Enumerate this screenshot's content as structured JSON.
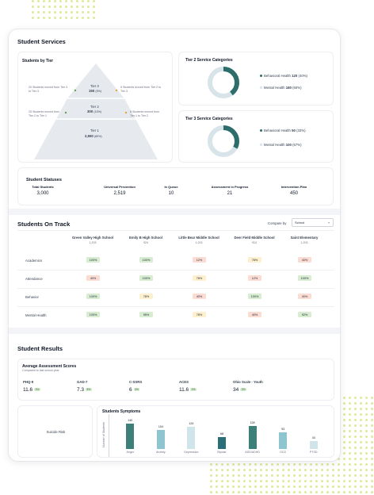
{
  "student_services": {
    "title": "Student Services",
    "tier_card": {
      "title": "Students by Tier",
      "tier3": {
        "label": "Tier 3",
        "count": "150",
        "pct": "(5%)"
      },
      "tier2": {
        "label": "Tier 2",
        "count": "300",
        "pct": "(10%)"
      },
      "tier1": {
        "label": "Tier 1",
        "count": "2,550",
        "pct": "(85%)"
      },
      "note_left_top": [
        "20 Students moved from Tier 3",
        "to Tier 3"
      ],
      "note_right_top": [
        "5 Students moved from Tier 2 to",
        "Tier 3"
      ],
      "note_left_bottom": [
        "25 Students moved from",
        "Tier 2 to Tier 1"
      ],
      "note_right_bottom": [
        "8 Students moved from",
        "Tier 1 to Tier 2"
      ]
    },
    "tier2_card": {
      "title": "Tier 2 Service Categories",
      "items": [
        {
          "label": "Behavioral Health",
          "value": "120",
          "pct": "(40%)",
          "color": "#2e6e6a"
        },
        {
          "label": "Mental Health",
          "value": "180",
          "pct": "(60%)",
          "color": "#d8e4ea"
        }
      ],
      "fraction": 0.4
    },
    "tier3_card": {
      "title": "Tier 3 Service Categories",
      "items": [
        {
          "label": "Behavioral Health",
          "value": "50",
          "pct": "(33%)",
          "color": "#2e6e6a"
        },
        {
          "label": "Mental Health",
          "value": "100",
          "pct": "(67%)",
          "color": "#d8e4ea"
        }
      ],
      "fraction": 0.33
    },
    "statuses": {
      "title": "Student Statuses",
      "items": [
        {
          "label": "Total Students",
          "value": "3,000"
        },
        {
          "label": "Universal Prevention",
          "value": "2,519"
        },
        {
          "label": "In Queue",
          "value": "10"
        },
        {
          "label": "Assessment in Progress",
          "value": "21"
        },
        {
          "label": "Intervention Plan",
          "value": "450"
        }
      ]
    }
  },
  "on_track": {
    "title": "Students On Track",
    "compare_label": "Compare by",
    "compare_value": "School",
    "schools": [
      {
        "name": "Green Valley High School",
        "count": "1,203"
      },
      {
        "name": "Emily B High School",
        "count": "924"
      },
      {
        "name": "Little Bear Middle School",
        "count": "1,203"
      },
      {
        "name": "Deer Field Middle School",
        "count": "924"
      },
      {
        "name": "Saint Elementary",
        "count": "1,203"
      }
    ],
    "rows": [
      {
        "label": "Academics",
        "values": [
          "100%",
          "100%",
          "12%",
          "78%",
          "40%"
        ],
        "colors": [
          "g",
          "g",
          "r",
          "y",
          "r"
        ]
      },
      {
        "label": "Attendance",
        "values": [
          "40%",
          "100%",
          "78%",
          "12%",
          "100%"
        ],
        "colors": [
          "r",
          "g",
          "y",
          "r",
          "g"
        ]
      },
      {
        "label": "Behavior",
        "values": [
          "100%",
          "78%",
          "40%",
          "100%",
          "40%"
        ],
        "colors": [
          "g",
          "y",
          "r",
          "g",
          "r"
        ]
      },
      {
        "label": "Mental Health",
        "values": [
          "100%",
          "95%",
          "78%",
          "40%",
          "92%"
        ],
        "colors": [
          "g",
          "g",
          "y",
          "r",
          "g"
        ]
      }
    ]
  },
  "results": {
    "title": "Student Results",
    "assessment": {
      "title": "Average Assessment Scores",
      "subtitle": "Compared to last school year",
      "items": [
        {
          "label": "PHQ-9",
          "value": "11.6",
          "badge": "3%"
        },
        {
          "label": "GAD-7",
          "value": "7.3",
          "badge": "5%"
        },
        {
          "label": "C-SSRS",
          "value": "6",
          "badge": "3%"
        },
        {
          "label": "ACES",
          "value": "11.6",
          "badge": "3%"
        },
        {
          "label": "Ohio Scale - Youth",
          "value": "34",
          "badge": "3%"
        }
      ]
    },
    "suicide_risk": {
      "title": "Suicide Risk"
    },
    "chart_data": {
      "type": "bar",
      "title": "Students Symptoms",
      "ylabel": "Number of Students",
      "categories": [
        "Anger",
        "Anxiety",
        "Depression",
        "Bipolar",
        "ADD/ADHD",
        "OCD",
        "PTSD"
      ],
      "values": [
        140,
        104,
        124,
        68,
        128,
        93,
        43
      ],
      "colors": [
        "#3d7f79",
        "#8ec5cf",
        "#cfe5ea",
        "#2a6e78",
        "#3d7f79",
        "#8ec5cf",
        "#cfe5ea"
      ],
      "ylim": [
        0,
        150
      ]
    }
  }
}
